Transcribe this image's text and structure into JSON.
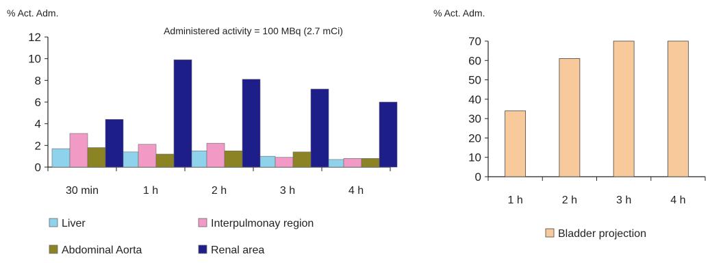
{
  "chart_data": [
    {
      "type": "bar",
      "ylabel": "% Act. Adm.",
      "annotation": "Administered activity = 100 MBq (2.7 mCi)",
      "categories": [
        "30 min",
        "1 h",
        "2 h",
        "3 h",
        "4 h"
      ],
      "ylim": [
        0,
        12
      ],
      "yticks": [
        0,
        2,
        4,
        6,
        8,
        10,
        12
      ],
      "series": [
        {
          "name": "Liver",
          "color": "#8ed2ec",
          "values": [
            1.7,
            1.4,
            1.5,
            1.0,
            0.7
          ]
        },
        {
          "name": "Interpulmonay region",
          "color": "#f29ac6",
          "values": [
            3.1,
            2.1,
            2.2,
            0.9,
            0.8
          ]
        },
        {
          "name": "Abdominal Aorta",
          "color": "#8c8424",
          "values": [
            1.8,
            1.2,
            1.5,
            1.4,
            0.8
          ]
        },
        {
          "name": "Renal area",
          "color": "#1e1e8a",
          "values": [
            4.4,
            9.9,
            8.1,
            7.2,
            6.0
          ]
        }
      ],
      "legend": "bottom",
      "grid": false
    },
    {
      "type": "bar",
      "ylabel": "% Act. Adm.",
      "categories": [
        "1 h",
        "2 h",
        "3 h",
        "4 h"
      ],
      "ylim": [
        0,
        70
      ],
      "yticks": [
        0,
        10,
        20,
        30,
        40,
        50,
        60,
        70
      ],
      "series": [
        {
          "name": "Bladder projection",
          "color": "#f8c99a",
          "values": [
            34,
            61,
            70,
            70
          ]
        }
      ],
      "legend": "bottom",
      "grid": false
    }
  ]
}
